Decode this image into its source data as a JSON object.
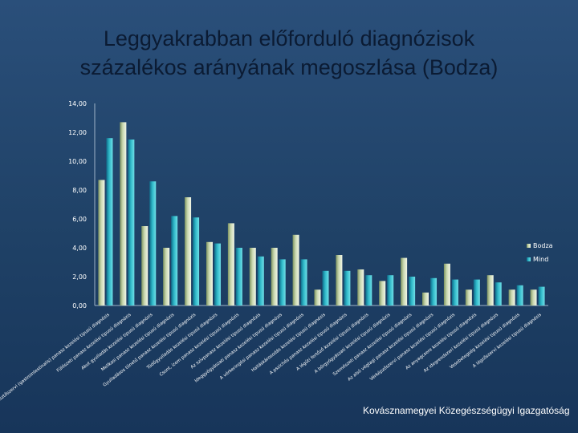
{
  "title_lines": [
    "Leggyakrabban előforduló diagnózisok",
    "százalékos arányának megoszlása (Bodza)"
  ],
  "footer": "Kovásznamegyei Közegészségügyi Igazgatóság",
  "colors": {
    "bodza": "#c9d8b0",
    "mind": "#2fb8c8",
    "axis_text": "#ffffff"
  },
  "chart_data": {
    "type": "bar",
    "title": "Leggyakrabban előforduló diagnózisok százalékos arányának megoszlása (Bodza)",
    "xlabel": "",
    "ylabel": "",
    "ylim": [
      0,
      14
    ],
    "yticks": [
      "0,00",
      "2,00",
      "4,00",
      "6,00",
      "8,00",
      "10,00",
      "12,00",
      "14,00"
    ],
    "legend": "right",
    "categories": [
      "Az emésztőszervi (gastrointestinalis) panasz kezelési tipusú diagnózis",
      "Fülészeti panasz kezelési tipusú diagnózis",
      "Akut gyulladás kezelési tipusú diagnózis",
      "Mellkasi panasz kezelési tipusú diagnózis",
      "Gyulladásos tünetű panasz kezelési tipusú diagnózis",
      "Tüdőgyulladás kezelési tipusú diagnózis",
      "Csont, izom panasz kezelési tipusú diagnózis",
      "Az szívpanasz kezelési tipusú diagnózis",
      "Ideggyógyászati panasz kezelési tipusú diagnózis",
      "A vérkeringési panasz kezelési tipusú diagnózis",
      "Halláskárosodás kezelési tipusú diagnózis",
      "A pszichés panasz kezelési tipusú diagnózis",
      "A légúti fertőző kezelési tipusú diagnózis",
      "A bőrgyógyászati kezelési tipusú diagnózis",
      "Szemészeti panasz kezelési tipusú diagnózis",
      "Az alsó végtagi panasz kezelési tipusú diagnózis",
      "Vérképzőszervi panasz kezelési tipusú diagnózis",
      "Az anyagcsere kezelési tipusú diagnózis",
      "Az idegrendszeri kezelési tipusú diagnózis",
      "Vesebetegség kezelési tipusú diagnózis",
      "A légzőszervi kezelési tipusú diagnózis"
    ],
    "series": [
      {
        "name": "Bodza",
        "values": [
          8.7,
          12.7,
          5.5,
          4.0,
          7.5,
          4.4,
          5.7,
          4.0,
          4.0,
          4.9,
          1.1,
          3.5,
          2.5,
          1.7,
          3.3,
          0.9,
          2.9,
          1.1,
          2.1,
          1.1,
          1.1
        ]
      },
      {
        "name": "Mind",
        "values": [
          11.6,
          11.5,
          8.6,
          6.2,
          6.1,
          4.3,
          4.0,
          3.4,
          3.2,
          3.2,
          2.4,
          2.4,
          2.1,
          2.1,
          2.0,
          1.9,
          1.8,
          1.8,
          1.6,
          1.4,
          1.3
        ]
      }
    ]
  }
}
